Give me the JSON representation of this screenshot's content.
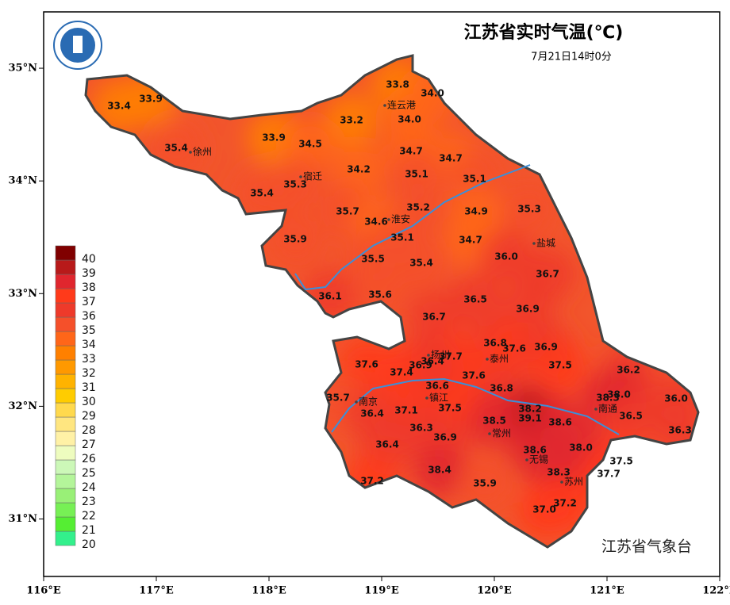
{
  "title": "江苏省实时气温(℃)",
  "subtitle": "7月21日14时0分",
  "footer": "江苏省气象台",
  "xlim": [
    116,
    122
  ],
  "ylim": [
    30.49,
    35.5
  ],
  "xticks": [
    {
      "value": 116,
      "label": "116°E"
    },
    {
      "value": 117,
      "label": "117°E"
    },
    {
      "value": 118,
      "label": "118°E"
    },
    {
      "value": 119,
      "label": "119°E"
    },
    {
      "value": 120,
      "label": "120°E"
    },
    {
      "value": 121,
      "label": "121°E"
    },
    {
      "value": 122,
      "label": "122°E"
    }
  ],
  "yticks": [
    {
      "value": 31,
      "label": "31°N"
    },
    {
      "value": 32,
      "label": "32°N"
    },
    {
      "value": 33,
      "label": "33°N"
    },
    {
      "value": 34,
      "label": "34°N"
    },
    {
      "value": 35,
      "label": "35°N"
    }
  ],
  "legend": {
    "levels": [
      20,
      21,
      22,
      23,
      24,
      25,
      26,
      27,
      28,
      29,
      30,
      31,
      32,
      33,
      34,
      35,
      36,
      37,
      38,
      39,
      40
    ],
    "colors": [
      "#33f08c",
      "#55ee33",
      "#77f055",
      "#99f077",
      "#b4f59a",
      "#ccf8b8",
      "#eefcbf",
      "#fff1a6",
      "#ffe680",
      "#ffd94d",
      "#ffcc00",
      "#ffb300",
      "#ff9900",
      "#ff8000",
      "#ff6619",
      "#f5502a",
      "#ee3a2a",
      "#ff3a1a",
      "#e0262e",
      "#b81a1a",
      "#800000"
    ]
  },
  "cities": [
    "连云港",
    "徐州",
    "宿迁",
    "淮安",
    "盐城",
    "扬州",
    "泰州",
    "南京",
    "镇江",
    "南通",
    "常州",
    "无锡",
    "苏州"
  ],
  "stations": [
    33.8,
    {
      "value": 34,
      "label": "34.0"
    },
    33.4,
    33.9,
    {
      "value": 34,
      "label": "34.0"
    },
    33.2,
    33.9,
    34.5,
    35.4,
    34.7,
    34.7,
    34.2,
    35.1,
    35.3,
    35.1,
    35.4,
    35.2,
    34.9,
    35.3,
    35.7,
    34.6,
    35.1,
    34.7,
    35.9,
    {
      "value": 36,
      "label": "36.0"
    },
    35.5,
    35.4,
    36.7,
    36.1,
    35.6,
    36.5,
    36.9,
    36.7,
    36.8,
    37.6,
    36.9,
    37.7,
    36.4,
    37.6,
    36.9,
    37.5,
    37.4,
    36.2,
    37.6,
    36.6,
    36.8,
    38.3,
    {
      "value": 38,
      "label": "38.0"
    },
    {
      "value": 36,
      "label": "36.0"
    },
    35.7,
    37.5,
    37.1,
    38.2,
    36.4,
    39.1,
    38.5,
    38.6,
    36.5,
    36.3,
    36.3,
    36.9,
    36.4,
    38.6,
    {
      "value": 38,
      "label": "38.0"
    },
    37.5,
    38.4,
    38.3,
    37.7,
    37.2,
    35.9,
    37.2,
    {
      "value": 37,
      "label": "37.0"
    }
  ]
}
